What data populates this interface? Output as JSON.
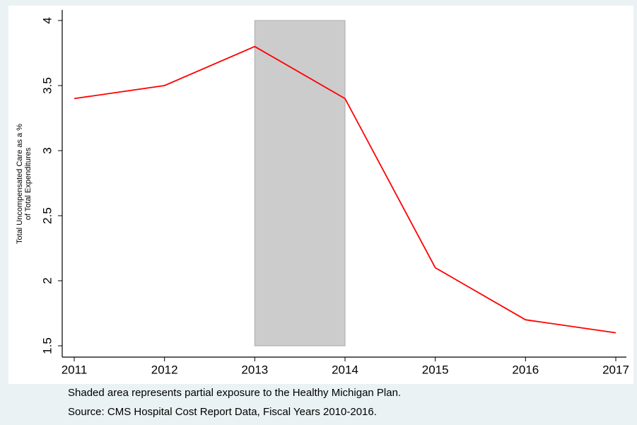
{
  "chart_data": {
    "type": "line",
    "y_label": [
      "Total Uncompensated Care as a %",
      "of Total Expenditures"
    ],
    "x": [
      2011,
      2012,
      2013,
      2014,
      2015,
      2016,
      2017
    ],
    "values": [
      3.4,
      3.5,
      3.8,
      3.4,
      2.1,
      1.7,
      1.6
    ],
    "color": "#ff0000",
    "xlim": [
      2011,
      2017
    ],
    "xticks": [
      2011,
      2012,
      2013,
      2014,
      2015,
      2016,
      2017
    ],
    "ylim": [
      1.5,
      4
    ],
    "yticks": [
      1.5,
      2,
      2.5,
      3,
      3.5,
      4
    ],
    "shaded_region": {
      "x": [
        2013,
        2014
      ],
      "y": [
        1.5,
        4
      ],
      "color": "#cccccc"
    },
    "notes": [
      "Shaded area represents partial exposure to the Healthy Michigan Plan.",
      "Source: CMS Hospital Cost Report Data, Fiscal Years 2010-2016."
    ]
  }
}
